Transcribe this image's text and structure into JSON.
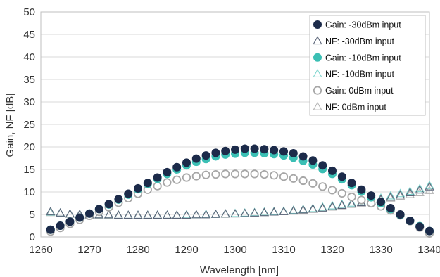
{
  "chart_data": {
    "type": "scatter",
    "xlabel": "Wavelength [nm]",
    "ylabel": "Gain, NF [dB]",
    "xlim": [
      1260,
      1340
    ],
    "ylim": [
      0,
      50
    ],
    "xticks": [
      "1260",
      "1270",
      "1280",
      "1290",
      "1300",
      "1310",
      "1320",
      "1330",
      "1340"
    ],
    "yticks": [
      "0",
      "5",
      "10",
      "15",
      "20",
      "25",
      "30",
      "35",
      "40",
      "45",
      "50"
    ],
    "grid": "horizontal",
    "legend": "top-right",
    "x": [
      1262,
      1264,
      1266,
      1268,
      1270,
      1272,
      1274,
      1276,
      1278,
      1280,
      1282,
      1284,
      1286,
      1288,
      1290,
      1292,
      1294,
      1296,
      1298,
      1300,
      1302,
      1304,
      1306,
      1308,
      1310,
      1312,
      1314,
      1316,
      1318,
      1320,
      1322,
      1324,
      1326,
      1328,
      1330,
      1332,
      1334,
      1336,
      1338,
      1340
    ],
    "series": [
      {
        "name": "Gain: -30dBm input",
        "marker": "circle-filled",
        "color": "#1c2b4a",
        "values": [
          1.6,
          2.5,
          3.4,
          4.3,
          5.2,
          6.2,
          7.3,
          8.4,
          9.6,
          10.8,
          12.0,
          13.2,
          14.4,
          15.5,
          16.5,
          17.4,
          18.1,
          18.7,
          19.1,
          19.4,
          19.6,
          19.6,
          19.5,
          19.3,
          19.0,
          18.6,
          17.9,
          17.0,
          15.9,
          14.7,
          13.4,
          12.0,
          10.5,
          9.2,
          7.8,
          6.4,
          5.0,
          3.6,
          2.3,
          1.3
        ]
      },
      {
        "name": "NF: -30dBm input",
        "marker": "triangle-open",
        "color": "#5a6478",
        "values": [
          5.6,
          5.3,
          5.1,
          5.0,
          4.9,
          4.9,
          4.9,
          4.8,
          4.8,
          4.8,
          4.8,
          4.8,
          4.8,
          4.8,
          4.8,
          4.9,
          4.9,
          5.0,
          5.1,
          5.1,
          5.2,
          5.3,
          5.4,
          5.5,
          5.6,
          5.8,
          6.0,
          6.2,
          6.4,
          6.7,
          7.0,
          7.3,
          7.6,
          7.9,
          8.3,
          8.8,
          9.3,
          9.8,
          10.4,
          11.1
        ]
      },
      {
        "name": "Gain: -10dBm input",
        "marker": "circle-filled",
        "color": "#3bbfb4",
        "values": [
          1.6,
          2.5,
          3.4,
          4.3,
          5.2,
          6.2,
          7.2,
          8.3,
          9.4,
          10.6,
          11.8,
          12.9,
          14.0,
          15.0,
          15.9,
          16.7,
          17.3,
          17.9,
          18.3,
          18.5,
          18.7,
          18.7,
          18.6,
          18.4,
          18.1,
          17.6,
          16.9,
          16.1,
          15.1,
          14.0,
          12.8,
          11.5,
          10.1,
          8.8,
          7.5,
          6.2,
          4.9,
          3.6,
          2.4,
          1.3
        ]
      },
      {
        "name": "NF: -10dBm input",
        "marker": "triangle-open",
        "color": "#7fd6cf",
        "values": [
          5.5,
          5.3,
          5.1,
          5.0,
          4.9,
          4.9,
          4.9,
          4.8,
          4.8,
          4.8,
          4.8,
          4.8,
          4.8,
          4.8,
          4.9,
          4.9,
          5.0,
          5.0,
          5.1,
          5.2,
          5.3,
          5.4,
          5.5,
          5.6,
          5.7,
          5.9,
          6.1,
          6.3,
          6.6,
          6.9,
          7.2,
          7.5,
          7.8,
          8.1,
          8.6,
          9.1,
          9.6,
          10.1,
          10.7,
          11.4
        ]
      },
      {
        "name": "Gain: 0dBm input",
        "marker": "circle-open",
        "color": "#a6a6a6",
        "values": [
          1.2,
          2.0,
          2.9,
          3.8,
          4.7,
          5.6,
          6.6,
          7.6,
          8.6,
          9.6,
          10.5,
          11.3,
          12.1,
          12.7,
          13.2,
          13.5,
          13.8,
          13.9,
          14.0,
          14.0,
          14.0,
          14.0,
          13.9,
          13.7,
          13.4,
          13.0,
          12.5,
          11.9,
          11.2,
          10.4,
          9.7,
          8.9,
          8.2,
          7.5,
          6.8,
          5.9,
          4.8,
          3.5,
          2.1,
          0.8
        ]
      },
      {
        "name": "NF: 0dBm input",
        "marker": "triangle-open",
        "color": "#b5b5b5",
        "values": [
          5.4,
          5.2,
          5.0,
          4.9,
          4.8,
          4.8,
          4.8,
          4.7,
          4.7,
          4.7,
          4.7,
          4.7,
          4.8,
          4.8,
          4.8,
          4.9,
          4.9,
          5.0,
          5.0,
          5.1,
          5.2,
          5.3,
          5.4,
          5.5,
          5.6,
          5.7,
          5.9,
          6.1,
          6.3,
          6.6,
          6.9,
          7.2,
          7.5,
          7.8,
          8.2,
          8.6,
          9.0,
          9.4,
          9.8,
          10.3
        ]
      }
    ]
  }
}
